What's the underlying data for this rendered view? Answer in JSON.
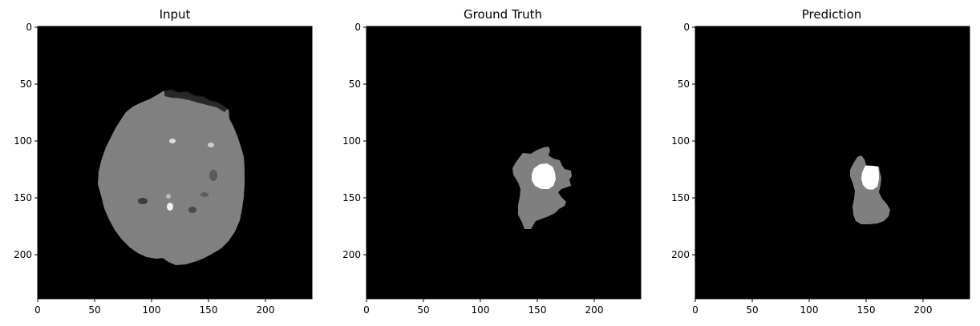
{
  "figure": {
    "panels": [
      {
        "id": "input",
        "title": "Input"
      },
      {
        "id": "ground-truth",
        "title": "Ground Truth"
      },
      {
        "id": "prediction",
        "title": "Prediction"
      }
    ],
    "axes": {
      "x_ticks": [
        "0",
        "50",
        "100",
        "150",
        "200"
      ],
      "y_ticks": [
        "0",
        "50",
        "100",
        "150",
        "200"
      ],
      "x_range": [
        0,
        240
      ],
      "y_range": [
        0,
        240
      ]
    },
    "colors": {
      "background": "#000000",
      "edema": "#7f7f7f",
      "core": "#ffffff",
      "brain": "#8a8a8a"
    }
  }
}
